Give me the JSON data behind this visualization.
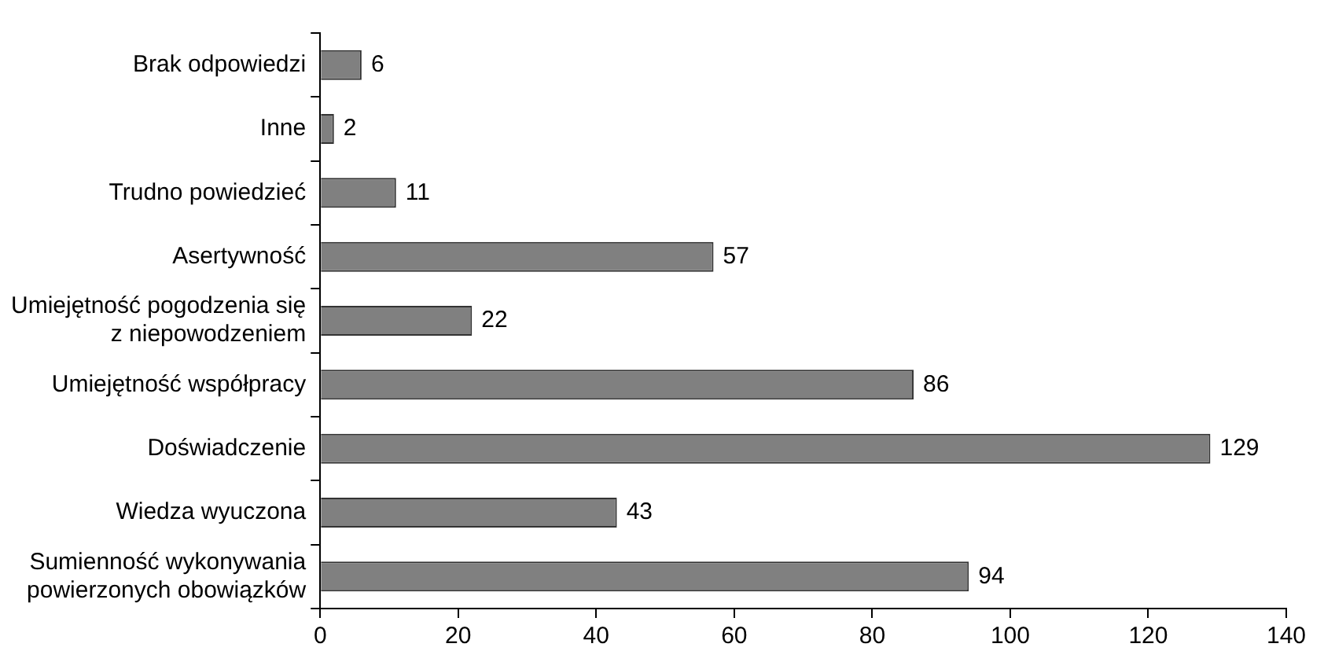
{
  "chart_data": {
    "type": "bar",
    "orientation": "horizontal",
    "categories": [
      "Brak odpowiedzi",
      "Inne",
      "Trudno powiedzieć",
      "Asertywność",
      "Umiejętność pogodzenia się\nz niepowodzeniem",
      "Umiejętność współpracy",
      "Doświadczenie",
      "Wiedza wyuczona",
      "Sumienność wykonywania\npowierzonych obowiązków"
    ],
    "values": [
      6,
      2,
      11,
      57,
      22,
      86,
      129,
      43,
      94
    ],
    "color": "#808080",
    "xlim": [
      0,
      140
    ],
    "xticks": [
      0,
      20,
      40,
      60,
      80,
      100,
      120,
      140
    ],
    "data_labels": true,
    "grid": false,
    "legend": false
  }
}
